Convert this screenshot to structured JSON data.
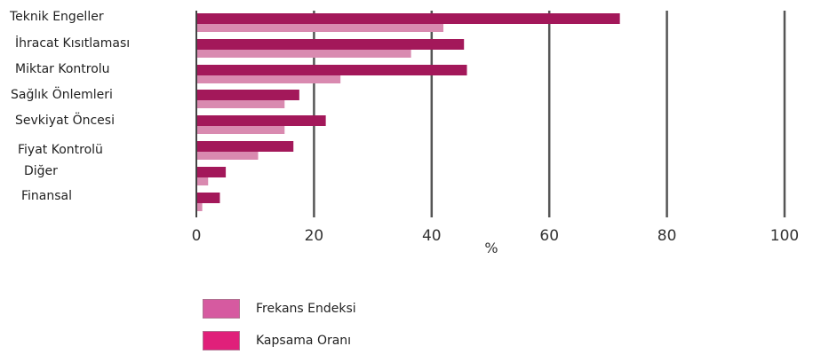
{
  "chart_data": {
    "type": "bar",
    "orientation": "horizontal",
    "categories": [
      "Teknik Engeller",
      "İhracat Kısıtlaması",
      "Miktar Kontrolu",
      "Sağlık Önlemleri",
      "Sevkiyat Öncesi",
      "Fiyat Kontrolü",
      "Diğer",
      "Finansal"
    ],
    "series": [
      {
        "name": "Kapsama Oranı",
        "values": [
          72,
          45.5,
          46,
          17.5,
          22,
          16.5,
          5,
          4
        ],
        "color": "#a3185a"
      },
      {
        "name": "Frekans Endeksi",
        "values": [
          42,
          36.5,
          24.5,
          15,
          15,
          10.5,
          2,
          1
        ],
        "color": "#d98ab0"
      }
    ],
    "xlabel": "%",
    "xlim": [
      0,
      100
    ],
    "xticks": [
      0,
      20,
      40,
      60,
      80,
      100
    ],
    "grid": true,
    "legend_position": "bottom"
  }
}
